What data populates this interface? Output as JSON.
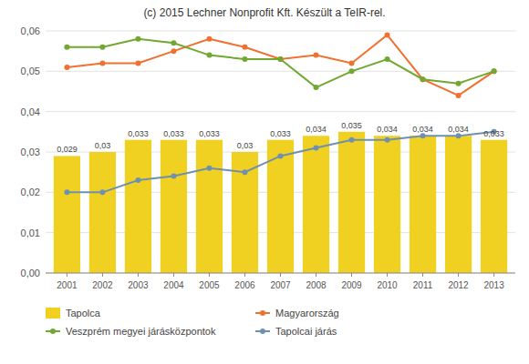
{
  "chart_data": {
    "type": "bar",
    "title": "(c) 2015 Lechner Nonprofit Kft. Készült a TeIR-rel.",
    "x": [
      2001,
      2002,
      2003,
      2004,
      2005,
      2006,
      2007,
      2008,
      2009,
      2010,
      2011,
      2012,
      2013
    ],
    "xlim": [
      2000.4,
      2013.6
    ],
    "xticks": [
      2001,
      2002,
      2003,
      2004,
      2005,
      2006,
      2007,
      2008,
      2009,
      2010,
      2011,
      2012,
      2013
    ],
    "ylim": [
      0.0,
      0.06
    ],
    "yticks": [
      {
        "value": 0.0,
        "label": "0,00"
      },
      {
        "value": 0.01,
        "label": "0,01"
      },
      {
        "value": 0.02,
        "label": "0,02"
      },
      {
        "value": 0.03,
        "label": "0,03"
      },
      {
        "value": 0.04,
        "label": "0,04"
      },
      {
        "value": 0.05,
        "label": "0,05"
      },
      {
        "value": 0.06,
        "label": "0,06"
      }
    ],
    "grid": true,
    "legend": "bottom",
    "series": [
      {
        "name": "Tapolca",
        "type": "bar",
        "color": "#F0D020",
        "data_labels": true,
        "values": [
          0.029,
          0.03,
          0.033,
          0.033,
          0.033,
          0.03,
          0.033,
          0.034,
          0.035,
          0.034,
          0.034,
          0.034,
          0.033
        ],
        "value_labels": [
          "0,029",
          "0,03",
          "0,033",
          "0,033",
          "0,033",
          "0,03",
          "0,033",
          "0,034",
          "0,035",
          "0,034",
          "0,034",
          "0,034",
          "0,033"
        ]
      },
      {
        "name": "Magyarország",
        "type": "line",
        "color": "#F07030",
        "marker": "circle",
        "values": [
          0.051,
          0.052,
          0.052,
          0.055,
          0.058,
          0.056,
          0.053,
          0.054,
          0.052,
          0.059,
          0.048,
          0.044,
          0.05
        ]
      },
      {
        "name": "Veszprém megyei járásközpontok",
        "type": "line",
        "color": "#70A830",
        "marker": "circle",
        "values": [
          0.056,
          0.056,
          0.058,
          0.057,
          0.054,
          0.053,
          0.053,
          0.046,
          0.05,
          0.053,
          0.048,
          0.047,
          0.05
        ]
      },
      {
        "name": "Tapolcai járás",
        "type": "line",
        "color": "#7090B0",
        "marker": "circle",
        "values": [
          0.02,
          0.02,
          0.023,
          0.024,
          0.026,
          0.025,
          0.029,
          0.031,
          0.033,
          0.033,
          0.034,
          0.034,
          0.035
        ]
      }
    ]
  }
}
